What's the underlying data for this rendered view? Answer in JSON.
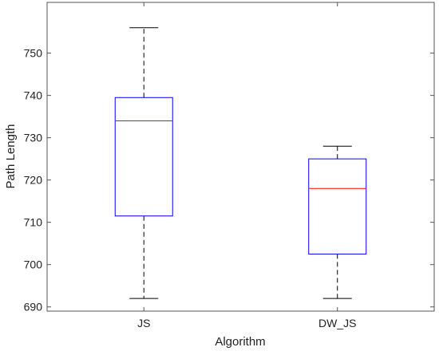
{
  "chart_data": {
    "type": "box",
    "xlabel": "Algorithm",
    "ylabel": "Path Length",
    "ylim": [
      689,
      762
    ],
    "yticks": [
      690,
      700,
      710,
      720,
      730,
      740,
      750
    ],
    "categories": [
      "JS",
      "DW_JS"
    ],
    "boxes": [
      {
        "category": "JS",
        "whisker_low": 692,
        "q1": 711.5,
        "median": 734,
        "q3": 739.5,
        "whisker_high": 756
      },
      {
        "category": "DW_JS",
        "whisker_low": 692,
        "q1": 702.5,
        "median": 718,
        "q3": 725,
        "whisker_high": 728
      }
    ],
    "grid": false,
    "colors": {
      "box": "#0000ff",
      "median": "#ff0000",
      "whisker": "#000000",
      "axes": "#555555"
    }
  }
}
